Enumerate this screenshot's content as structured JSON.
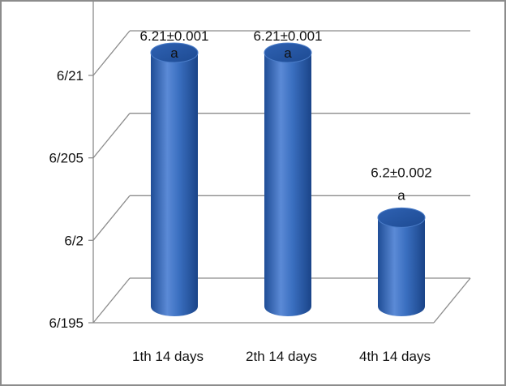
{
  "chart_data": {
    "type": "bar",
    "style": "3d-cylinder",
    "categories": [
      "1th 14 days",
      "2th 14 days",
      "4th 14 days"
    ],
    "values": [
      6.21,
      6.21,
      6.2
    ],
    "y_ticks": [
      {
        "value": 6.195,
        "label": "6/195"
      },
      {
        "value": 6.2,
        "label": "6/2"
      },
      {
        "value": 6.205,
        "label": "6/205"
      },
      {
        "value": 6.21,
        "label": "6/21"
      }
    ],
    "ylim": [
      6.195,
      6.2125
    ],
    "data_labels": [
      "6.21±0.001",
      "6.21±0.001",
      "6.2±0.002"
    ],
    "significance_letters": [
      "a",
      "a",
      "a"
    ],
    "grid": true,
    "colors": {
      "bar": "#3a6fc0",
      "bar_dark": "#1f4d96",
      "bar_light": "#6b98dd",
      "grid": "#8c8c8c",
      "frame": "#8c8c8c"
    }
  }
}
